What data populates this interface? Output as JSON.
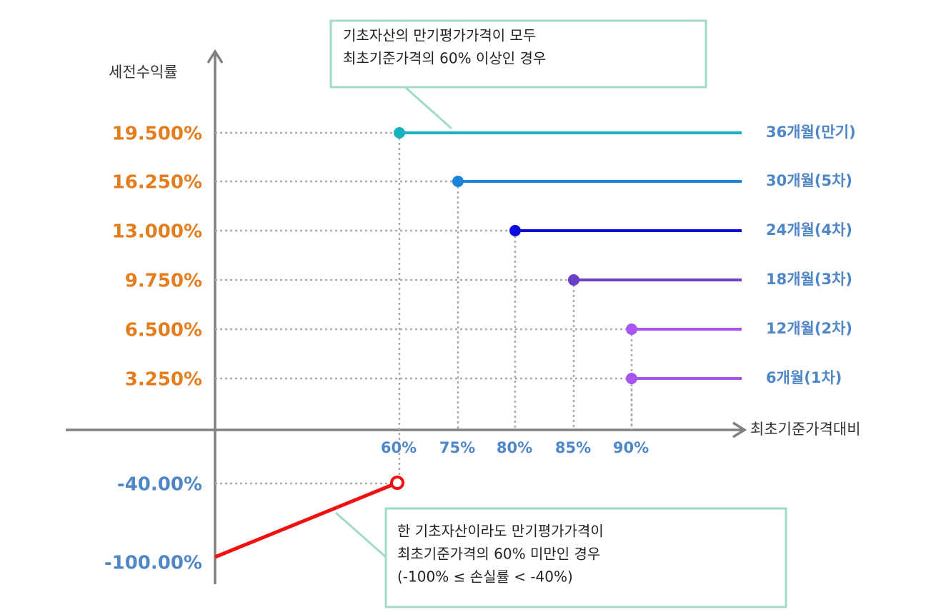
{
  "y_axis_label": "세전수익률",
  "x_axis_label": "최초기준가격대비",
  "x_labels": [
    "60%",
    "75%",
    "80%",
    "85%",
    "90%"
  ],
  "levels": [
    {
      "rate": "19.500%",
      "period": "36개월(만기)",
      "color": "#19b2c2"
    },
    {
      "rate": "16.250%",
      "period": "30개월(5차)",
      "color": "#1a85d8"
    },
    {
      "rate": "13.000%",
      "period": "24개월(4차)",
      "color": "#0a0adf"
    },
    {
      "rate": "9.750%",
      "period": "18개월(3차)",
      "color": "#6a3fc8"
    },
    {
      "rate": "6.500%",
      "period": "12개월(2차)",
      "color": "#a855f0"
    },
    {
      "rate": "3.250%",
      "period": "6개월(1차)",
      "color": "#a855f0"
    }
  ],
  "loss_labels": [
    "-40.00%",
    "-100.00%"
  ],
  "callouts": [
    {
      "lines": [
        "기초자산의 만기평가가격이 모두",
        "최초기준가격의 60% 이상인 경우"
      ]
    },
    {
      "lines": [
        "한 기초자산이라도 만기평가가격이",
        "최초기준가격의 60% 미만인 경우",
        "(-100% ≤ 손실률 < -40%)"
      ]
    }
  ]
}
